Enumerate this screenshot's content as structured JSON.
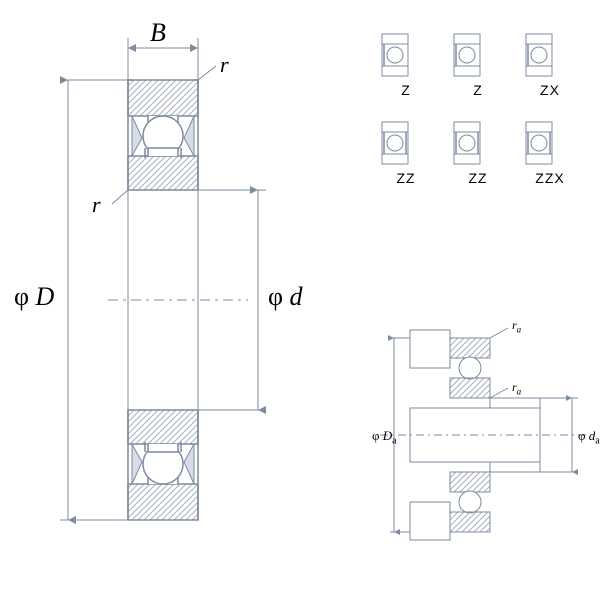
{
  "colors": {
    "stroke": "#7d8aa0",
    "fill_white": "#ffffff",
    "fill_light": "#d6dde8",
    "hatch": "#a8b0bf",
    "text": "#000000"
  },
  "main_view": {
    "type": "engineering-cross-section",
    "labels": {
      "B": "B",
      "r_top": "r",
      "r_bottom": "r",
      "phi_D": "φ D",
      "phi_d": "φ d"
    },
    "label_fontsize_large": 26,
    "label_fontsize_r": 22,
    "dim_line_width": 1,
    "part_line_width": 1.5,
    "centerline_dash": "8 4 3 4",
    "arrow_size": 7
  },
  "variants": {
    "row1": [
      "Z",
      "Z",
      "ZX"
    ],
    "row2": [
      "ZZ",
      "ZZ",
      "ZZX"
    ],
    "label_fontsize": 14,
    "icon_line_width": 1,
    "closed_both_shields": false
  },
  "secondary_view": {
    "labels": {
      "phi_Da": "φ Da",
      "phi_da": "φ da",
      "ra_top": "ra",
      "ra_bottom": "ra"
    },
    "label_fontsize": 13,
    "sub_fontsize": 10
  }
}
